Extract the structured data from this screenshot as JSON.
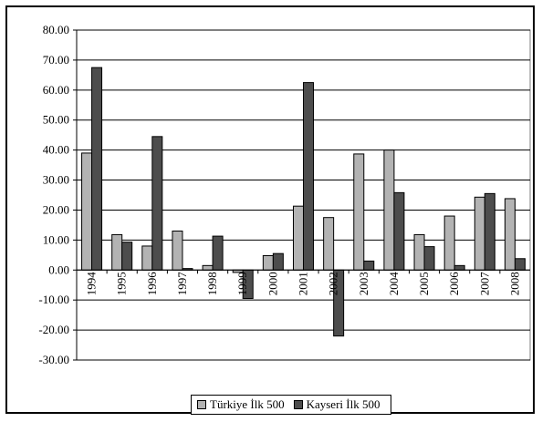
{
  "chart_data": {
    "type": "bar",
    "categories": [
      "1994",
      "1995",
      "1996",
      "1997",
      "1998",
      "1999",
      "2000",
      "2001",
      "2002",
      "2003",
      "2004",
      "2005",
      "2006",
      "2007",
      "2008"
    ],
    "series": [
      {
        "name": "Türkiye İlk 500",
        "color": "#b3b3b3",
        "values": [
          39.0,
          11.8,
          8.0,
          13.0,
          1.5,
          -0.8,
          4.8,
          21.3,
          17.5,
          38.7,
          40.0,
          11.8,
          18.0,
          24.3,
          23.8
        ]
      },
      {
        "name": "Kayseri İlk 500",
        "color": "#4d4d4d",
        "values": [
          67.5,
          9.3,
          44.5,
          0.5,
          11.3,
          -9.5,
          5.5,
          62.5,
          -22.0,
          3.0,
          25.8,
          7.8,
          1.5,
          25.5,
          3.8
        ]
      }
    ],
    "y_ticks": [
      "80.00",
      "70.00",
      "60.00",
      "50.00",
      "40.00",
      "30.00",
      "20.00",
      "10.00",
      "0.00",
      "-10.00",
      "-20.00",
      "-30.00"
    ],
    "ylim": [
      -30,
      80
    ],
    "grid": true,
    "legend_position": "bottom"
  }
}
